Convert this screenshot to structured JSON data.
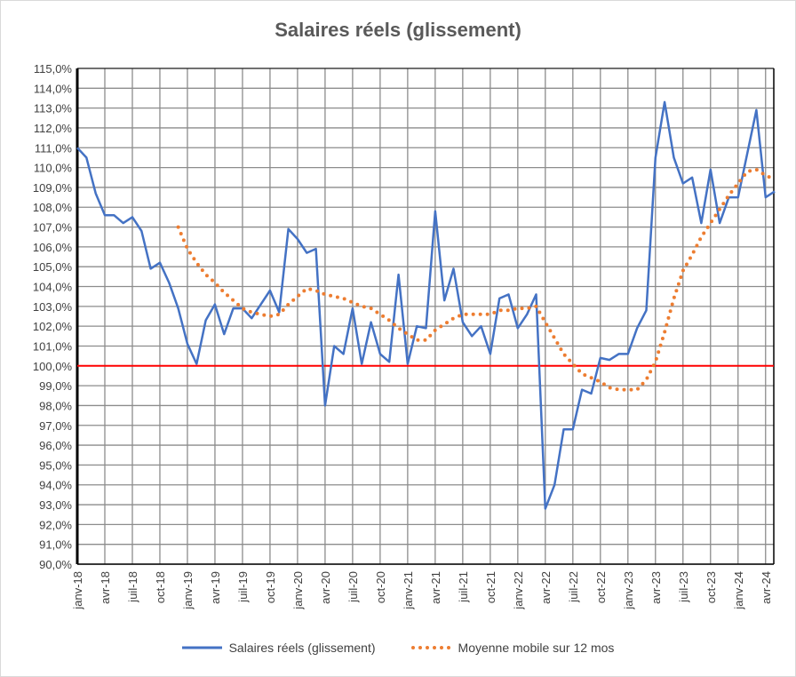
{
  "chart_data": {
    "type": "line",
    "title": "Salaires réels (glissement)",
    "xlabel": "",
    "ylabel": "",
    "ylim": [
      90,
      115
    ],
    "y_tick_step": 1,
    "grid": true,
    "legend_position": "bottom",
    "reference_line": {
      "value": 100,
      "color": "#ff0000"
    },
    "x_start": "janv-18",
    "x_tick_labels": [
      "janv-18",
      "avr-18",
      "juil-18",
      "oct-18",
      "janv-19",
      "avr-19",
      "juil-19",
      "oct-19",
      "janv-20",
      "avr-20",
      "juil-20",
      "oct-20",
      "janv-21",
      "avr-21",
      "juil-21",
      "oct-21",
      "janv-22",
      "avr-22",
      "juil-22",
      "oct-22",
      "janv-23",
      "avr-23",
      "juil-23",
      "oct-23",
      "janv-24",
      "avr-24"
    ],
    "series": [
      {
        "name": "Salaires réels (glissement)",
        "color": "#4472c4",
        "style": "solid",
        "values": [
          111.0,
          110.5,
          108.7,
          107.6,
          107.6,
          107.2,
          107.5,
          106.8,
          104.9,
          105.2,
          104.2,
          102.9,
          101.1,
          100.1,
          102.3,
          103.1,
          101.6,
          102.9,
          102.9,
          102.4,
          103.1,
          103.8,
          102.7,
          106.9,
          106.4,
          105.7,
          105.9,
          98.0,
          101.0,
          100.6,
          102.9,
          100.1,
          102.2,
          100.6,
          100.2,
          104.6,
          100.1,
          102.0,
          101.9,
          107.8,
          103.3,
          104.9,
          102.2,
          101.5,
          102.0,
          100.6,
          103.4,
          103.6,
          101.9,
          102.6,
          103.6,
          92.8,
          94.0,
          96.8,
          96.8,
          98.8,
          98.6,
          100.4,
          100.3,
          100.6,
          100.6,
          101.9,
          102.8,
          110.5,
          113.3,
          110.5,
          109.2,
          109.5,
          107.2,
          109.9,
          107.2,
          108.5,
          108.5,
          110.7,
          112.9,
          108.5,
          108.8
        ]
      },
      {
        "name": "Moyenne mobile sur 12 mos",
        "color": "#ed7d31",
        "style": "dotted",
        "values": [
          null,
          null,
          null,
          null,
          null,
          null,
          null,
          null,
          null,
          null,
          null,
          107.0,
          105.9,
          105.2,
          104.6,
          104.2,
          103.7,
          103.3,
          102.9,
          102.7,
          102.6,
          102.5,
          102.6,
          103.1,
          103.5,
          103.9,
          103.8,
          103.6,
          103.5,
          103.4,
          103.2,
          103.0,
          102.9,
          102.6,
          102.3,
          101.9,
          101.6,
          101.3,
          101.3,
          101.8,
          102.1,
          102.4,
          102.6,
          102.6,
          102.6,
          102.6,
          102.8,
          102.8,
          102.9,
          102.9,
          103.0,
          102.2,
          101.4,
          100.6,
          100.1,
          99.6,
          99.4,
          99.2,
          98.9,
          98.8,
          98.8,
          98.8,
          99.3,
          100.2,
          101.7,
          103.4,
          104.8,
          105.6,
          106.5,
          107.2,
          107.9,
          108.6,
          109.2,
          109.8,
          109.9,
          109.6,
          109.4
        ]
      }
    ]
  }
}
